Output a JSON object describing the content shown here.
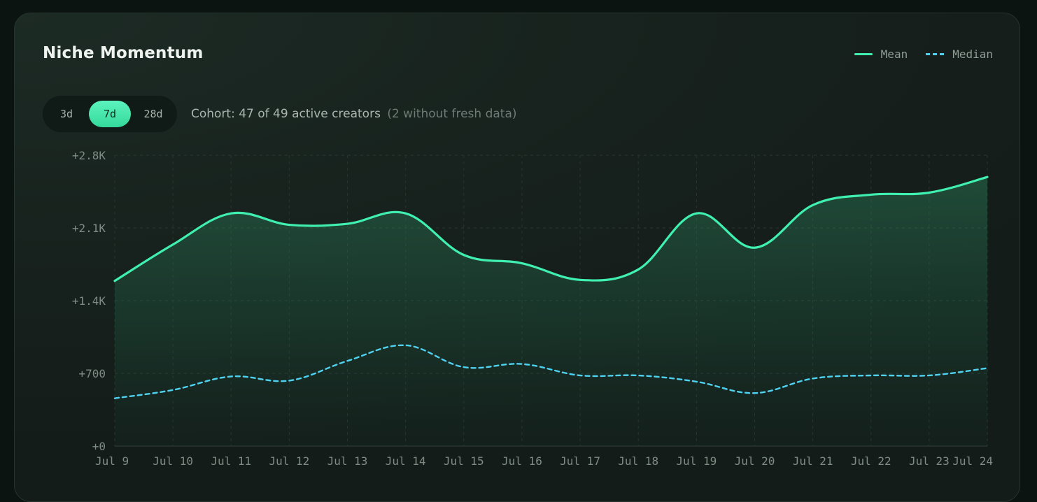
{
  "card": {
    "title": "Niche Momentum",
    "legend": [
      {
        "label": "Mean"
      },
      {
        "label": "Median"
      }
    ],
    "range_options": [
      {
        "label": "3d",
        "active": false
      },
      {
        "label": "7d",
        "active": true
      },
      {
        "label": "28d",
        "active": false
      }
    ],
    "cohort_text": "Cohort: 47 of 49 active creators",
    "cohort_note": "(2 without fresh data)"
  },
  "colors": {
    "mean": "#3ff0b0",
    "median": "#4fd2f2",
    "accent": "#46e6ab"
  },
  "chart_data": {
    "type": "line",
    "title": "Niche Momentum",
    "x": [
      "Jul 9",
      "Jul 10",
      "Jul 11",
      "Jul 12",
      "Jul 13",
      "Jul 14",
      "Jul 15",
      "Jul 16",
      "Jul 17",
      "Jul 18",
      "Jul 19",
      "Jul 20",
      "Jul 21",
      "Jul 22",
      "Jul 23",
      "Jul 24"
    ],
    "series": [
      {
        "name": "Mean",
        "style": "solid-area",
        "values": [
          1590,
          1940,
          2240,
          2130,
          2140,
          2240,
          1840,
          1760,
          1600,
          1700,
          2240,
          1910,
          2320,
          2420,
          2440,
          2590
        ]
      },
      {
        "name": "Median",
        "style": "dashed",
        "values": [
          460,
          540,
          670,
          630,
          820,
          970,
          760,
          790,
          680,
          680,
          620,
          510,
          650,
          680,
          680,
          750
        ]
      }
    ],
    "y_ticks": [
      "+0",
      "+700",
      "+1.4K",
      "+2.1K",
      "+2.8K"
    ],
    "ylim": [
      0,
      2800
    ],
    "grid": true,
    "legend": "top-right",
    "xlabel": "",
    "ylabel": ""
  }
}
